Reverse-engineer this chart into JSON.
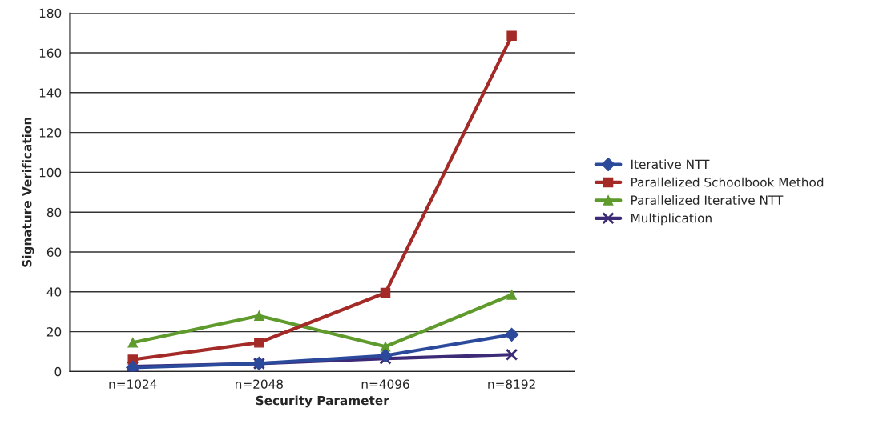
{
  "chart_data": {
    "type": "line",
    "xlabel": "Security Parameter",
    "ylabel": "Signature Verification",
    "categories": [
      "n=1024",
      "n=2048",
      "n=4096",
      "n=8192"
    ],
    "series": [
      {
        "name": "Iterative NTT",
        "color": "#2b4a9c",
        "marker": "diamond",
        "values": [
          2,
          4,
          8,
          18.5
        ]
      },
      {
        "name": "Parallelized Schoolbook Method",
        "color": "#a32a26",
        "marker": "square",
        "values": [
          6,
          14.5,
          39.5,
          168.5
        ]
      },
      {
        "name": "Parallelized Iterative NTT",
        "color": "#5e9a2c",
        "marker": "triangle",
        "values": [
          14.5,
          28,
          12.5,
          38.5
        ]
      },
      {
        "name": "Multiplication",
        "color": "#3d2b78",
        "marker": "cross",
        "values": [
          2.5,
          4,
          6.5,
          8.5
        ]
      }
    ],
    "ylim": [
      0,
      180
    ],
    "yticks": [
      0,
      20,
      40,
      60,
      80,
      100,
      120,
      140,
      160,
      180
    ],
    "grid": "y",
    "legend": "right",
    "line_style": "solid"
  }
}
